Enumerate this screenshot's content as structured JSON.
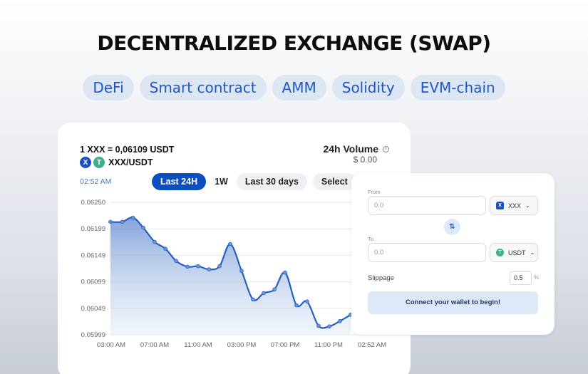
{
  "page": {
    "title": "DECENTRALIZED EXCHANGE (SWAP)",
    "tags": [
      "DeFi",
      "Smart contract",
      "AMM",
      "Solidity",
      "EVM-chain"
    ]
  },
  "chart_card": {
    "rate": "1 XXX = 0,06109 USDT",
    "pair": "XXX/USDT",
    "token_a_icon": "X",
    "token_b_icon": "T",
    "volume_title": "24h Volume",
    "volume_value": "$ 0.00",
    "current_time": "02:52 AM",
    "ranges": [
      "Last 24H",
      "1W",
      "Last 30 days",
      "Select"
    ],
    "active_range": "Last 24H"
  },
  "chart_data": {
    "type": "area",
    "title": "XXX/USDT price, Last 24H",
    "xlabel": "",
    "ylabel": "",
    "x_ticks": [
      "03:00 AM",
      "07:00 AM",
      "11:00 AM",
      "03:00 PM",
      "07:00 PM",
      "11:00 PM",
      "02:52 AM"
    ],
    "y_ticks": [
      "0.06250",
      "0.06199",
      "0.06149",
      "0.06099",
      "0.06049",
      "0.05999"
    ],
    "ylim": [
      0.05999,
      0.0625
    ],
    "grid": true,
    "color": "#2460c4",
    "x": [
      -0.07,
      1.0,
      2.0,
      2.95,
      4.0,
      5.0,
      5.97,
      7.02,
      8.0,
      9.0,
      9.97,
      10.95,
      12.0,
      13.05,
      14.03,
      15.02,
      16.0,
      17.05,
      18.03,
      19.08,
      20.07,
      21.05,
      22.03
    ],
    "values": [
      0.06213,
      0.06213,
      0.06221,
      0.06202,
      0.06175,
      0.06162,
      0.06139,
      0.06128,
      0.06129,
      0.06123,
      0.06129,
      0.06171,
      0.0612,
      0.06066,
      0.06078,
      0.06085,
      0.06117,
      0.06055,
      0.06062,
      0.06016,
      0.06015,
      0.06025,
      0.06037
    ]
  },
  "swap": {
    "from_label": "From",
    "from_value": "0.0",
    "from_token": "XXX",
    "to_label": "To",
    "to_value": "0.0",
    "to_token": "USDT",
    "swap_icon": "⇅",
    "slippage_label": "Slippage",
    "slippage_value": "0.5",
    "slippage_unit": "%",
    "connect_label": "Connect your wallet to begin!"
  }
}
